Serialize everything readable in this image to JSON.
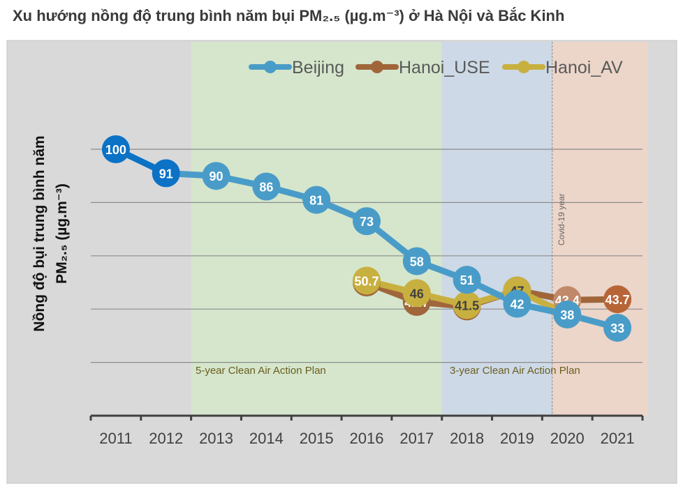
{
  "title": "Xu hướng nồng độ trung bình năm bụi PM₂.₅ (µg.m⁻³) ở Hà Nội và Bắc Kinh",
  "chart_data": {
    "type": "line",
    "title": "Xu hướng nồng độ trung bình năm bụi PM₂.₅ (µg.m⁻³) ở Hà Nội và Bắc Kinh",
    "ylabel_line1": "Nồng độ bụi trung bình năm",
    "ylabel_line2": "PM₂.₅ (µg.m⁻³)",
    "xlabel": "",
    "categories": [
      "2011",
      "2012",
      "2013",
      "2014",
      "2015",
      "2016",
      "2017",
      "2018",
      "2019",
      "2020",
      "2021"
    ],
    "ylim": [
      0,
      110
    ],
    "grid": true,
    "legend_position": "top-right",
    "series": [
      {
        "name": "Beijing",
        "color": "#4a9cc8",
        "dark_color": "#0b72c6",
        "values": [
          100,
          91,
          90,
          86,
          81,
          73,
          58,
          51,
          42,
          38,
          33
        ],
        "labels": [
          "100",
          "91",
          "90",
          "86",
          "81",
          "73",
          "58",
          "51",
          "42",
          "38",
          "33"
        ]
      },
      {
        "name": "Hanoi_USE",
        "color": "#a0663a",
        "values": [
          null,
          null,
          null,
          null,
          null,
          50,
          42.7,
          41,
          47,
          43.4,
          43.7
        ],
        "labels": [
          "",
          "",
          "",
          "",
          "",
          "50",
          "42.7",
          "41",
          "",
          "43.4",
          "43.7"
        ]
      },
      {
        "name": "Hanoi_AV",
        "color": "#c8b040",
        "values": [
          null,
          null,
          null,
          null,
          null,
          50.7,
          46,
          41.5,
          47,
          38,
          null
        ],
        "labels": [
          "",
          "",
          "",
          "",
          "",
          "50.7",
          "46",
          "41.5",
          "47",
          "38",
          ""
        ]
      }
    ],
    "annotations": [
      {
        "text": "5-year Clean Air Action Plan",
        "from": "2013",
        "to": "2017",
        "color": "#d5e6cc"
      },
      {
        "text": "3-year Clean Air Action Plan",
        "from": "2018",
        "to": "2020",
        "color": "#cdd9e6"
      },
      {
        "text": "Covid-19  year",
        "year": "2020",
        "color": "#efd4c6"
      }
    ]
  }
}
